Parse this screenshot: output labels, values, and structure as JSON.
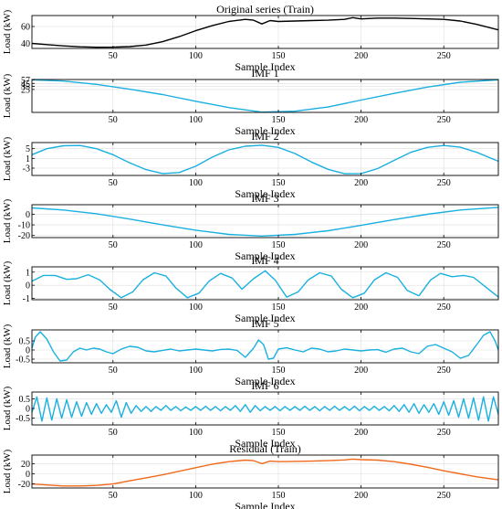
{
  "chart_data": [
    {
      "type": "line",
      "title": "Original series (Train)",
      "xlabel": "Sample Index",
      "ylabel": "Load (kW)",
      "xlim": [
        1,
        283
      ],
      "xticks": [
        50,
        100,
        150,
        200,
        250
      ],
      "ylim": [
        34,
        73
      ],
      "yticks": [
        40,
        60
      ],
      "grid": true,
      "color": "#000000",
      "series": [
        {
          "x": [
            1,
            10,
            20,
            30,
            40,
            50,
            60,
            70,
            80,
            90,
            100,
            110,
            120,
            130,
            135,
            140,
            145,
            150,
            160,
            170,
            180,
            190,
            195,
            200,
            210,
            220,
            230,
            240,
            250,
            260,
            270,
            283
          ],
          "y": [
            40,
            38.5,
            37,
            36,
            35.4,
            35.5,
            36.2,
            38,
            42,
            48,
            55,
            61,
            66,
            68.5,
            67.5,
            63,
            67,
            66,
            66.5,
            67,
            67.5,
            68.5,
            70.5,
            69,
            70,
            70,
            69.5,
            69,
            68.5,
            66.5,
            62.5,
            56
          ]
        }
      ]
    },
    {
      "type": "line",
      "title": "IMF 1",
      "xlabel": "Sample Index",
      "ylabel": "Load (kW)",
      "xlim": [
        1,
        283
      ],
      "xticks": [
        50,
        100,
        150,
        200,
        250
      ],
      "ylim": [
        -51,
        58
      ],
      "yticks": [
        57,
        45,
        35,
        25
      ],
      "grid": true,
      "color": "#1ab0e0",
      "series": [
        {
          "x": [
            1,
            20,
            40,
            60,
            80,
            100,
            120,
            140,
            160,
            180,
            200,
            220,
            240,
            260,
            283
          ],
          "y": [
            57,
            53,
            42,
            26,
            8,
            -14,
            -35,
            -50,
            -47,
            -33,
            -10,
            12,
            33,
            49,
            57
          ]
        }
      ]
    },
    {
      "type": "line",
      "title": "IMF 2",
      "xlabel": "Sample Index",
      "ylabel": "Load (kW)",
      "xlim": [
        1,
        283
      ],
      "xticks": [
        50,
        100,
        150,
        200,
        250
      ],
      "ylim": [
        -6,
        7.5
      ],
      "yticks": [
        5,
        1,
        -3
      ],
      "grid": true,
      "color": "#1ab0e0",
      "series": [
        {
          "x": [
            1,
            10,
            20,
            30,
            40,
            50,
            60,
            70,
            80,
            90,
            100,
            110,
            120,
            130,
            140,
            150,
            160,
            170,
            180,
            190,
            200,
            210,
            220,
            230,
            240,
            250,
            260,
            270,
            283
          ],
          "y": [
            2.5,
            5.0,
            6.2,
            6.3,
            5.0,
            2.5,
            -0.8,
            -3.6,
            -5.2,
            -4.8,
            -2.2,
            1.5,
            4.5,
            6.0,
            6.4,
            5.5,
            3.0,
            -0.5,
            -3.5,
            -5.3,
            -5.2,
            -3.2,
            0.2,
            3.5,
            5.5,
            6.3,
            5.6,
            3.5,
            -0.2
          ]
        }
      ]
    },
    {
      "type": "line",
      "title": "IMF 3",
      "xlabel": "Sample Index",
      "ylabel": "Load (kW)",
      "xlim": [
        1,
        283
      ],
      "xticks": [
        50,
        100,
        150,
        200,
        250
      ],
      "ylim": [
        -22,
        9
      ],
      "yticks": [
        0,
        -10,
        -20
      ],
      "grid": true,
      "color": "#1ab0e0",
      "series": [
        {
          "x": [
            1,
            20,
            40,
            60,
            80,
            100,
            120,
            140,
            160,
            180,
            200,
            220,
            240,
            260,
            283
          ],
          "y": [
            6,
            4,
            0.5,
            -4.5,
            -10,
            -15,
            -19,
            -20.5,
            -19,
            -15.5,
            -10.5,
            -5,
            0,
            4,
            6.5
          ]
        }
      ]
    },
    {
      "type": "line",
      "title": "IMF 4",
      "xlabel": "Sample Index",
      "ylabel": "Load (kW)",
      "xlim": [
        1,
        283
      ],
      "xticks": [
        50,
        100,
        150,
        200,
        250
      ],
      "ylim": [
        -1.1,
        1.4
      ],
      "yticks": [
        1,
        0,
        -1
      ],
      "grid": true,
      "color": "#1ab0e0",
      "series": [
        {
          "x": [
            1,
            8,
            15,
            22,
            28,
            35,
            42,
            48,
            55,
            62,
            68,
            75,
            82,
            88,
            95,
            102,
            108,
            115,
            122,
            128,
            135,
            142,
            148,
            155,
            162,
            168,
            175,
            182,
            188,
            195,
            202,
            208,
            215,
            222,
            228,
            235,
            242,
            248,
            255,
            262,
            268,
            275,
            283
          ],
          "y": [
            0.3,
            0.75,
            0.75,
            0.45,
            0.5,
            0.8,
            0.4,
            -0.3,
            -0.95,
            -0.5,
            0.4,
            0.95,
            0.7,
            -0.2,
            -0.95,
            -0.6,
            0.3,
            0.9,
            0.55,
            -0.3,
            0.5,
            1.1,
            0.4,
            -0.9,
            -0.5,
            0.4,
            0.95,
            0.7,
            -0.3,
            -0.95,
            -0.6,
            0.4,
            0.95,
            0.6,
            -0.4,
            -0.8,
            0.4,
            0.9,
            0.65,
            0.75,
            0.6,
            -0.1,
            -0.9
          ]
        }
      ]
    },
    {
      "type": "line",
      "title": "IMF 5",
      "xlabel": "Sample Index",
      "ylabel": "Load (kW)",
      "xlim": [
        1,
        283
      ],
      "xticks": [
        50,
        100,
        150,
        200,
        250
      ],
      "ylim": [
        -0.7,
        1.1
      ],
      "yticks": [
        0.5,
        0,
        -0.5
      ],
      "grid": true,
      "color": "#1ab0e0",
      "series": [
        {
          "x": [
            1,
            3,
            6,
            10,
            14,
            18,
            22,
            26,
            30,
            34,
            38,
            42,
            46,
            50,
            55,
            60,
            65,
            70,
            75,
            80,
            85,
            90,
            95,
            100,
            105,
            110,
            115,
            120,
            125,
            130,
            135,
            138,
            141,
            144,
            147,
            150,
            155,
            160,
            165,
            170,
            175,
            180,
            185,
            190,
            195,
            200,
            205,
            210,
            215,
            220,
            225,
            230,
            235,
            240,
            245,
            250,
            255,
            260,
            265,
            270,
            274,
            278,
            281,
            283
          ],
          "y": [
            0.1,
            0.7,
            1.0,
            0.6,
            -0.1,
            -0.6,
            -0.55,
            -0.1,
            0.1,
            0.0,
            0.1,
            0.05,
            -0.1,
            -0.2,
            0.05,
            0.2,
            0.15,
            -0.05,
            -0.1,
            -0.02,
            0.05,
            -0.05,
            0.0,
            0.05,
            0.0,
            -0.05,
            0.03,
            0.05,
            -0.02,
            -0.4,
            0.1,
            0.55,
            0.3,
            -0.5,
            -0.45,
            0.05,
            0.12,
            0.0,
            -0.1,
            0.1,
            0.05,
            -0.1,
            -0.05,
            0.05,
            0.0,
            -0.05,
            0.0,
            0.02,
            -0.12,
            0.05,
            0.1,
            -0.1,
            -0.2,
            0.2,
            0.3,
            0.1,
            -0.1,
            -0.45,
            -0.3,
            0.3,
            0.8,
            1.0,
            0.5,
            0.0
          ]
        }
      ]
    },
    {
      "type": "line",
      "title": "IMF 6",
      "xlabel": "Sample Index",
      "ylabel": "Load (kW)",
      "xlim": [
        1,
        283
      ],
      "xticks": [
        50,
        100,
        150,
        200,
        250
      ],
      "ylim": [
        -0.85,
        0.85
      ],
      "yticks": [
        0.5,
        0,
        -0.5
      ],
      "grid": true,
      "color": "#1ab0e0",
      "series": [
        {
          "x": [
            1,
            4,
            7,
            10,
            13,
            16,
            19,
            22,
            25,
            28,
            31,
            34,
            37,
            40,
            43,
            46,
            49,
            52,
            55,
            58,
            61,
            64,
            67,
            70,
            73,
            76,
            79,
            82,
            85,
            88,
            91,
            94,
            97,
            100,
            103,
            106,
            109,
            112,
            115,
            118,
            121,
            124,
            127,
            130,
            133,
            136,
            139,
            142,
            145,
            148,
            151,
            154,
            157,
            160,
            163,
            166,
            169,
            172,
            175,
            178,
            181,
            184,
            187,
            190,
            193,
            196,
            199,
            202,
            205,
            208,
            211,
            214,
            217,
            220,
            223,
            226,
            229,
            232,
            235,
            238,
            241,
            244,
            247,
            250,
            253,
            256,
            259,
            262,
            265,
            268,
            271,
            274,
            277,
            280,
            283
          ],
          "y": [
            -0.2,
            0.6,
            -0.65,
            0.55,
            -0.6,
            0.5,
            -0.5,
            0.45,
            -0.45,
            0.35,
            -0.4,
            0.3,
            -0.3,
            0.25,
            -0.25,
            0.2,
            -0.2,
            0.4,
            -0.45,
            0.3,
            -0.25,
            0.15,
            -0.15,
            0.1,
            -0.15,
            0.1,
            -0.1,
            0.15,
            -0.1,
            0.1,
            -0.12,
            0.08,
            -0.1,
            0.1,
            -0.1,
            0.12,
            -0.1,
            0.1,
            -0.12,
            0.1,
            -0.1,
            0.15,
            -0.15,
            0.2,
            -0.2,
            0.15,
            -0.12,
            0.1,
            -0.1,
            0.1,
            -0.12,
            0.1,
            -0.1,
            0.1,
            -0.1,
            0.12,
            -0.1,
            0.1,
            -0.12,
            0.1,
            -0.1,
            0.12,
            -0.1,
            0.1,
            -0.1,
            0.12,
            -0.12,
            0.1,
            -0.1,
            0.12,
            -0.1,
            0.1,
            -0.12,
            0.15,
            -0.15,
            0.2,
            -0.2,
            0.25,
            -0.25,
            0.2,
            -0.2,
            0.25,
            -0.3,
            0.35,
            -0.35,
            0.4,
            -0.45,
            0.5,
            -0.5,
            0.55,
            -0.6,
            0.6,
            -0.65,
            0.6,
            -0.3
          ]
        }
      ]
    },
    {
      "type": "line",
      "title": "Residual (Train)",
      "xlabel": "Sample Index",
      "ylabel": "Load (kW)",
      "xlim": [
        1,
        283
      ],
      "xticks": [
        50,
        100,
        150,
        200,
        250
      ],
      "ylim": [
        -28,
        37
      ],
      "yticks": [
        20,
        0,
        -20
      ],
      "grid": true,
      "color": "#f06a1c",
      "series": [
        {
          "x": [
            1,
            10,
            20,
            30,
            40,
            50,
            60,
            70,
            80,
            90,
            100,
            110,
            120,
            130,
            135,
            140,
            145,
            150,
            160,
            170,
            180,
            190,
            195,
            200,
            210,
            220,
            230,
            240,
            250,
            260,
            270,
            283
          ],
          "y": [
            -20,
            -22,
            -24,
            -24,
            -23,
            -20,
            -14,
            -8,
            -2,
            5,
            12,
            19,
            24,
            27,
            26,
            20,
            25,
            24,
            24.5,
            25,
            26,
            27.5,
            29,
            28,
            27,
            24,
            19,
            13,
            6,
            0,
            -6,
            -12
          ]
        }
      ]
    }
  ]
}
